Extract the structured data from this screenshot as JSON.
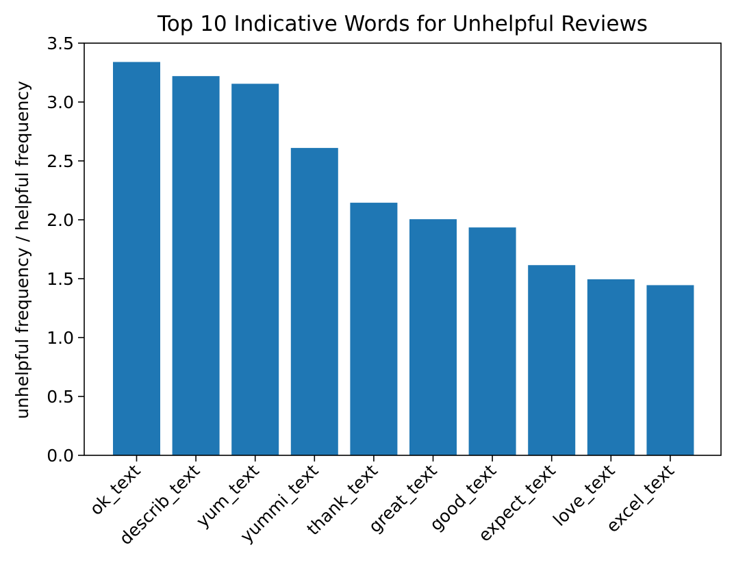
{
  "chart_data": {
    "type": "bar",
    "title": "Top 10 Indicative Words for Unhelpful Reviews",
    "xlabel": "",
    "ylabel": "unhelpful frequency / helpful frequency",
    "categories": [
      "ok_text",
      "describ_text",
      "yum_text",
      "yummi_text",
      "thank_text",
      "great_text",
      "good_text",
      "expect_text",
      "love_text",
      "excel_text"
    ],
    "values": [
      3.34,
      3.22,
      3.155,
      2.61,
      2.145,
      2.005,
      1.935,
      1.615,
      1.495,
      1.445
    ],
    "ylim": [
      0,
      3.5
    ],
    "yticks": [
      "0.0",
      "0.5",
      "1.0",
      "1.5",
      "2.0",
      "2.5",
      "3.0",
      "3.5"
    ],
    "bar_color": "#1f77b4",
    "grid": false,
    "legend": "none"
  }
}
